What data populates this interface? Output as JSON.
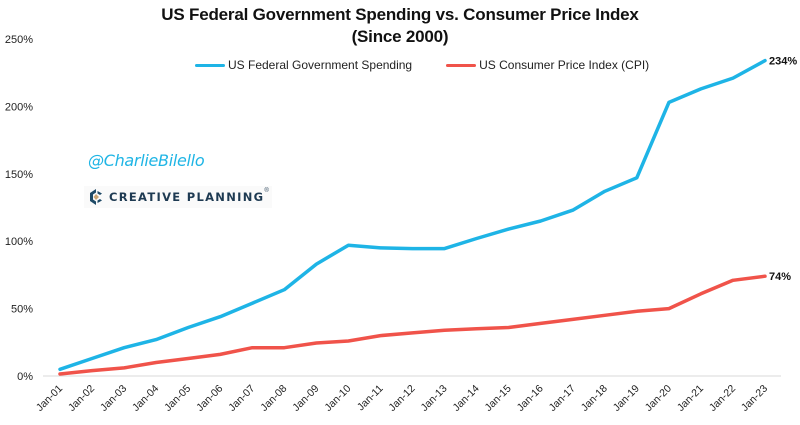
{
  "chart_data": {
    "type": "line",
    "title": "US Federal Government Spending vs. Consumer Price Index",
    "subtitle": "(Since 2000)",
    "xlabel": "",
    "ylabel": "",
    "categories": [
      "Jan-01",
      "Jan-02",
      "Jan-03",
      "Jan-04",
      "Jan-05",
      "Jan-06",
      "Jan-07",
      "Jan-08",
      "Jan-09",
      "Jan-10",
      "Jan-11",
      "Jan-12",
      "Jan-13",
      "Jan-14",
      "Jan-15",
      "Jan-16",
      "Jan-17",
      "Jan-18",
      "Jan-19",
      "Jan-20",
      "Jan-21",
      "Jan-22",
      "Jan-23"
    ],
    "series": [
      {
        "name": "US Federal Government Spending",
        "color": "#1eb4e6",
        "values": [
          5,
          13,
          21,
          27,
          36,
          44,
          54,
          64,
          83,
          97,
          95,
          94.5,
          94.5,
          102,
          109,
          115,
          123,
          137,
          147,
          203,
          213,
          221,
          234
        ],
        "end_label": "234%"
      },
      {
        "name": "US Consumer Price Index (CPI)",
        "color": "#f0534a",
        "values": [
          1.5,
          4,
          6,
          10,
          13,
          16,
          21,
          21,
          24.5,
          26,
          30,
          32,
          34,
          35,
          36,
          39,
          42,
          45,
          48,
          50,
          61,
          71,
          74
        ],
        "end_label": "74%"
      }
    ],
    "ylim": [
      0,
      250
    ],
    "yticks": [
      0,
      50,
      100,
      150,
      200,
      250
    ],
    "ytick_labels": [
      "0%",
      "50%",
      "100%",
      "150%",
      "200%",
      "250%"
    ],
    "grid": false,
    "legend_position": "top-center"
  },
  "watermark": {
    "handle": "@CharlieBilello",
    "brand": "CREATIVE PLANNING",
    "brand_mark": "®"
  }
}
